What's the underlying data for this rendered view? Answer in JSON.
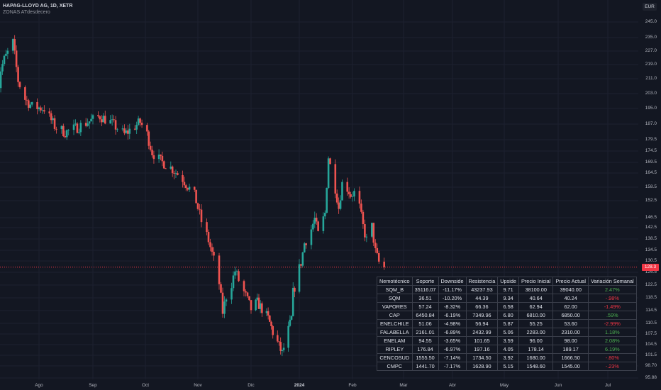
{
  "header": {
    "symbol": "HAPAG-LLOYD AG, 1D, XETR",
    "indicator": "ZONAS ATdesdecero",
    "currency": "EUR"
  },
  "price_tag": "128.3",
  "colors": {
    "up": "#26a69a",
    "down": "#ef5350",
    "last_price_line": "#f23645",
    "background": "#131722",
    "positive_text": "#4caf50",
    "negative_text": "#f23645"
  },
  "chart_data": {
    "type": "candlestick",
    "title": "HAPAG-LLOYD AG, 1D, XETR",
    "currency": "EUR",
    "last_price": 128.3,
    "y_ticks": [
      "245.0",
      "235.0",
      "227.0",
      "219.0",
      "211.0",
      "203.0",
      "195.0",
      "187.0",
      "179.5",
      "174.5",
      "169.5",
      "164.5",
      "158.5",
      "152.5",
      "146.5",
      "142.5",
      "138.5",
      "134.5",
      "130.5",
      "126.5",
      "122.5",
      "118.5",
      "114.5",
      "110.5",
      "107.5",
      "104.5",
      "101.5",
      "98.70",
      "95.88"
    ],
    "x_ticks": [
      "Ago",
      "Sep",
      "Oct",
      "Nov",
      "Dic",
      "2024",
      "Feb",
      "Mar",
      "Abr",
      "May",
      "Jun",
      "Jul"
    ],
    "ylim": [
      95.88,
      245.0
    ],
    "scale": "log",
    "x_range": [
      "2023-07-06",
      "2024-07-31"
    ],
    "trend_closes": [
      [
        "2023-07-06",
        205
      ],
      [
        "2023-07-12",
        222
      ],
      [
        "2023-07-17",
        232
      ],
      [
        "2023-07-20",
        210
      ],
      [
        "2023-07-24",
        200
      ],
      [
        "2023-07-28",
        196
      ],
      [
        "2023-08-04",
        195
      ],
      [
        "2023-08-10",
        186
      ],
      [
        "2023-08-16",
        183
      ],
      [
        "2023-08-22",
        185
      ],
      [
        "2023-08-29",
        188
      ],
      [
        "2023-09-05",
        191
      ],
      [
        "2023-09-11",
        188
      ],
      [
        "2023-09-15",
        185
      ],
      [
        "2023-09-19",
        182
      ],
      [
        "2023-09-25",
        186
      ],
      [
        "2023-09-28",
        188
      ],
      [
        "2023-10-02",
        182
      ],
      [
        "2023-10-05",
        174
      ],
      [
        "2023-10-10",
        170
      ],
      [
        "2023-10-16",
        167
      ],
      [
        "2023-10-23",
        162
      ],
      [
        "2023-10-30",
        155
      ],
      [
        "2023-11-03",
        145
      ],
      [
        "2023-11-07",
        138
      ],
      [
        "2023-11-10",
        131
      ],
      [
        "2023-11-13",
        123
      ],
      [
        "2023-11-15",
        114
      ],
      [
        "2023-11-17",
        119
      ],
      [
        "2023-11-20",
        123
      ],
      [
        "2023-11-22",
        127
      ],
      [
        "2023-11-24",
        124
      ],
      [
        "2023-11-28",
        119
      ],
      [
        "2023-12-01",
        115
      ],
      [
        "2023-12-05",
        117
      ],
      [
        "2023-12-08",
        115
      ],
      [
        "2023-12-12",
        112
      ],
      [
        "2023-12-15",
        108
      ],
      [
        "2023-12-19",
        104
      ],
      [
        "2023-12-21",
        102
      ],
      [
        "2023-12-27",
        112
      ],
      [
        "2023-12-28",
        120
      ],
      [
        "2024-01-02",
        130
      ],
      [
        "2024-01-04",
        137
      ],
      [
        "2024-01-08",
        142
      ],
      [
        "2024-01-10",
        146
      ],
      [
        "2024-01-12",
        140
      ],
      [
        "2024-01-16",
        148
      ],
      [
        "2024-01-17",
        160
      ],
      [
        "2024-01-18",
        172
      ],
      [
        "2024-01-19",
        168
      ],
      [
        "2024-01-22",
        158
      ],
      [
        "2024-01-24",
        150
      ],
      [
        "2024-01-26",
        160
      ],
      [
        "2024-01-29",
        158
      ],
      [
        "2024-01-31",
        155
      ],
      [
        "2024-02-02",
        156
      ],
      [
        "2024-02-05",
        150
      ],
      [
        "2024-02-07",
        143
      ],
      [
        "2024-02-09",
        138
      ],
      [
        "2024-02-12",
        143
      ],
      [
        "2024-02-14",
        134
      ],
      [
        "2024-02-16",
        130
      ],
      [
        "2024-02-19",
        128.3
      ]
    ]
  },
  "table": {
    "headers": [
      "Nemotécnico",
      "Soporte",
      "Downside",
      "Resistencia",
      "Upside",
      "Precio Inicial",
      "Precio Actual",
      "Variación Semanal"
    ],
    "rows": [
      {
        "cells": [
          "SQM_B",
          "35116.07",
          "-11.17%",
          "43237.93",
          "9.71",
          "38100.00",
          "39040.00",
          "2.47%"
        ],
        "dir": "pos"
      },
      {
        "cells": [
          "SQM",
          "36.51",
          "-10.20%",
          "44.39",
          "9.34",
          "40.64",
          "40.24",
          "-.98%"
        ],
        "dir": "neg"
      },
      {
        "cells": [
          "VAPORES",
          "57.24",
          "-8.32%",
          "66.36",
          "6.58",
          "62.94",
          "62.00",
          "-1.49%"
        ],
        "dir": "neg"
      },
      {
        "cells": [
          "CAP",
          "6450.84",
          "-6.19%",
          "7349.96",
          "6.80",
          "6810.00",
          "6850.00",
          ".59%"
        ],
        "dir": "pos"
      },
      {
        "cells": [
          "ENELCHILE",
          "51.06",
          "-4.98%",
          "56.94",
          "5.87",
          "55.25",
          "53.60",
          "-2.99%"
        ],
        "dir": "neg"
      },
      {
        "cells": [
          "FALABELLA",
          "2161.01",
          "-6.89%",
          "2432.99",
          "5.06",
          "2283.00",
          "2310.00",
          "1.18%"
        ],
        "dir": "pos"
      },
      {
        "cells": [
          "ENELAM",
          "94.55",
          "-3.65%",
          "101.65",
          "3.59",
          "96.00",
          "98.00",
          "2.08%"
        ],
        "dir": "pos"
      },
      {
        "cells": [
          "RIPLEY",
          "176.84",
          "-6.97%",
          "197.16",
          "4.05",
          "178.14",
          "189.17",
          "6.19%"
        ],
        "dir": "pos"
      },
      {
        "cells": [
          "CENCOSUD",
          "1555.50",
          "-7.14%",
          "1734.50",
          "3.92",
          "1680.00",
          "1666.50",
          "-.80%"
        ],
        "dir": "neg"
      },
      {
        "cells": [
          "CMPC",
          "1441.70",
          "-7.17%",
          "1628.90",
          "5.15",
          "1548.60",
          "1545.00",
          "-.23%"
        ],
        "dir": "neg"
      }
    ]
  }
}
